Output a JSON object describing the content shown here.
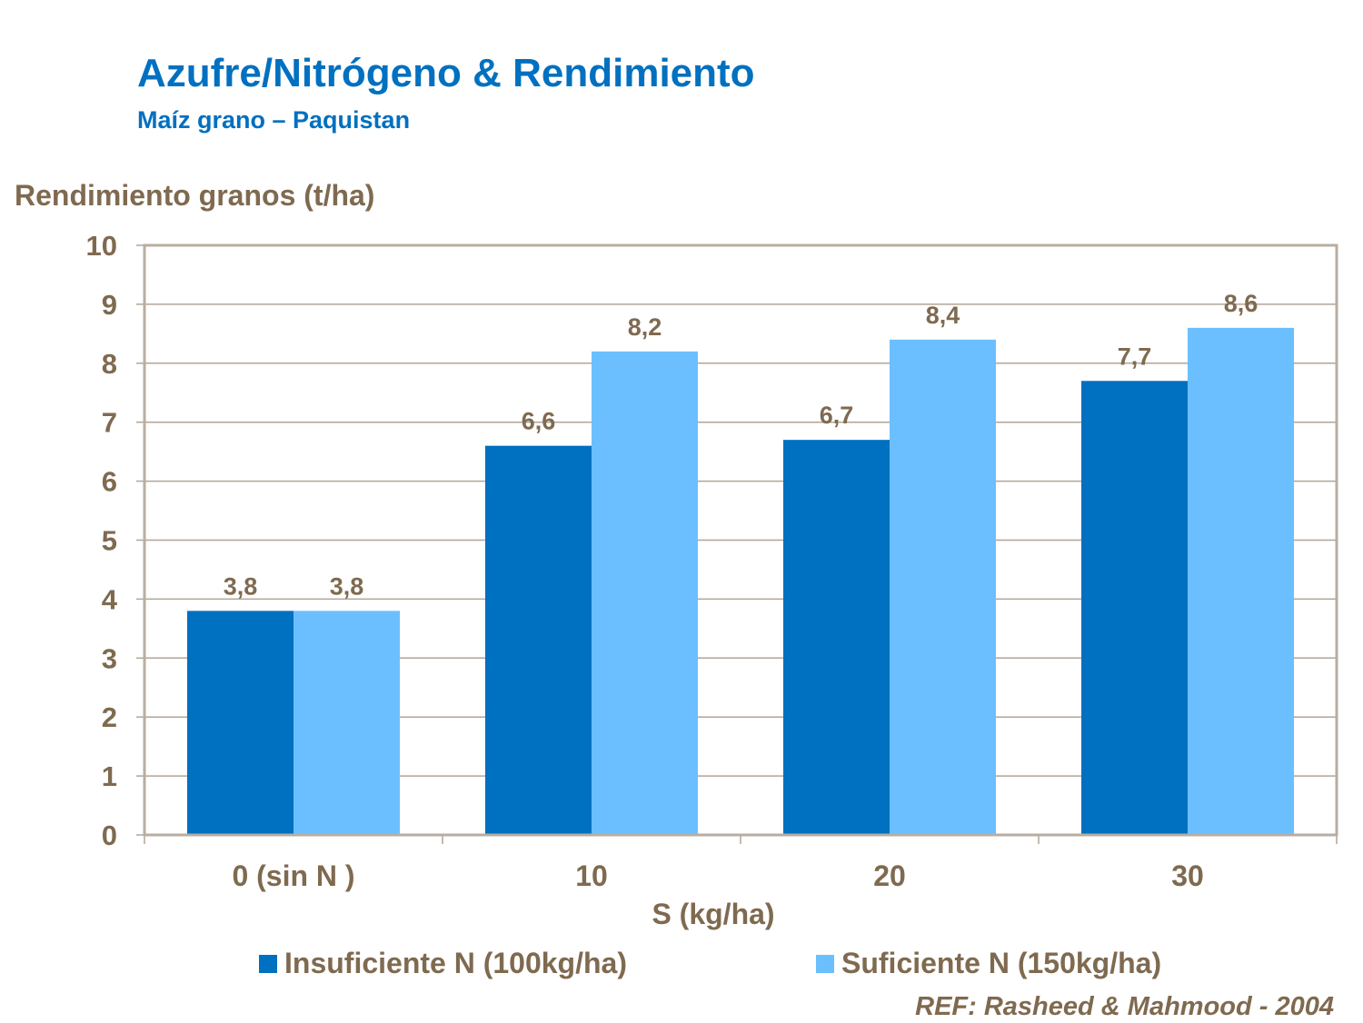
{
  "chart_data": {
    "type": "bar",
    "title": "Azufre/Nitrógeno & Rendimiento",
    "subtitle": "Maíz grano – Paquistan",
    "xlabel": "S (kg/ha)",
    "ylabel": "Rendimiento granos (t/ha)",
    "categories": [
      "0 (sin N )",
      "10",
      "20",
      "30"
    ],
    "ylim": [
      0,
      10
    ],
    "yticks": [
      0,
      1,
      2,
      3,
      4,
      5,
      6,
      7,
      8,
      9,
      10
    ],
    "grid": true,
    "legend_position": "bottom",
    "series": [
      {
        "name": "Insuficiente N (100kg/ha)",
        "values": [
          3.8,
          6.6,
          6.7,
          7.7
        ],
        "labels": [
          "3,8",
          "6,6",
          "6,7",
          "7,7"
        ],
        "color": "#0070c0"
      },
      {
        "name": "Suficiente N (150kg/ha)",
        "values": [
          3.8,
          8.2,
          8.4,
          8.6
        ],
        "labels": [
          "3,8",
          "8,2",
          "8,4",
          "8,6"
        ],
        "color": "#6bbfff"
      }
    ],
    "reference": "REF: Rasheed & Mahmood - 2004"
  }
}
